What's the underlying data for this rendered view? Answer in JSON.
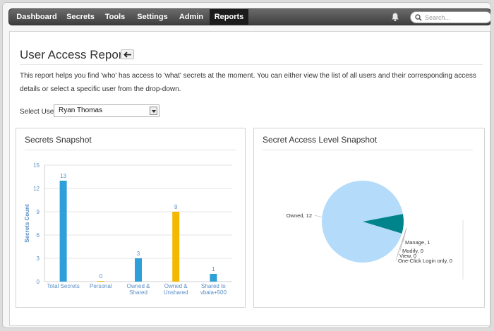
{
  "nav": {
    "items": [
      "Dashboard",
      "Secrets",
      "Tools",
      "Settings",
      "Admin",
      "Reports"
    ],
    "active": "Reports",
    "search_placeholder": "Search..."
  },
  "page": {
    "title": "User Access Report",
    "description": "This report helps you find 'who' has access to 'what' secrets at the moment. You can either view the list of all users and their corresponding access details or select a specific user from the drop-down.",
    "select_label": "Select User",
    "selected_user": "Ryan Thomas"
  },
  "panels": {
    "left_title": "Secrets Snapshot",
    "right_title": "Secret Access Level Snapshot"
  },
  "colors": {
    "bar_blue": "#2e9fd8",
    "bar_yellow": "#f5b800",
    "pie_owned": "#b4dcfa",
    "pie_manage": "#00848b",
    "axis_text": "#5a8ec4"
  },
  "chart_data": [
    {
      "type": "bar",
      "title": "Secrets Snapshot",
      "categories": [
        "Total Secrets",
        "Personal",
        "Owned & Shared",
        "Owned & Unshared",
        "Shared to vbala+500"
      ],
      "category_lines": [
        [
          "Total Secrets"
        ],
        [
          "Personal"
        ],
        [
          "Owned &",
          "Shared"
        ],
        [
          "Owned &",
          "Unshared"
        ],
        [
          "Shared to",
          "vbala+500"
        ]
      ],
      "values": [
        13,
        0,
        3,
        9,
        1
      ],
      "value_labels": [
        "13",
        "0",
        "3",
        "9",
        "1"
      ],
      "bar_colors": [
        "blue",
        "yellow",
        "blue",
        "yellow",
        "blue"
      ],
      "ylabel": "Secrets Count",
      "ylim": [
        0,
        15
      ],
      "yticks": [
        "0",
        "3",
        "6",
        "9",
        "12",
        "15"
      ],
      "grid": true
    },
    {
      "type": "pie",
      "title": "Secret Access Level Snapshot",
      "slices": [
        {
          "label": "Owned, 12",
          "value": 12
        },
        {
          "label": "Manage, 1",
          "value": 1
        },
        {
          "label": "Modify, 0",
          "value": 0
        },
        {
          "label": "View, 0",
          "value": 0
        },
        {
          "label": "One-Click Login only, 0",
          "value": 0
        }
      ]
    }
  ]
}
